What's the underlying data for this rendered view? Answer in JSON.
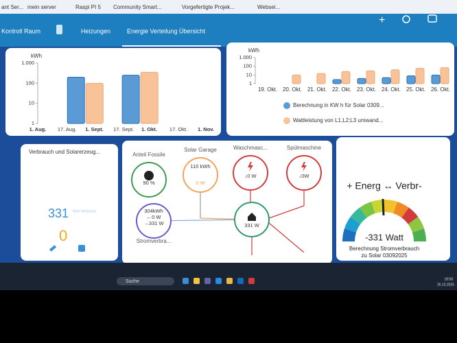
{
  "bookmarks": [
    "ant Ser...",
    "mein server",
    "Raspi PI 5",
    "Community Smart...",
    "Vorgefertigte Projek...",
    "Websei..."
  ],
  "nav": {
    "tabs": [
      "Kontroll Raum",
      "Heizungen",
      "Energie Verteilung Übersicht"
    ]
  },
  "monthly_chart": {
    "type": "bar",
    "y_label": "kWh",
    "log_scale": true,
    "ylim": [
      1,
      1000
    ],
    "yticks": [
      {
        "value": 1000,
        "label": "1.000"
      },
      100,
      10,
      1
    ],
    "xlim": [
      213,
      305
    ],
    "xticks": [
      {
        "value": 213,
        "label": "1. Aug."
      },
      {
        "value": 229,
        "label": "17. Aug."
      },
      {
        "value": 244,
        "label": "1. Sept."
      },
      {
        "value": 260,
        "label": "17. Sept."
      },
      {
        "value": 274,
        "label": "1. Okt."
      },
      {
        "value": 290,
        "label": "17. Okt."
      },
      {
        "value": 305,
        "label": "1. Nov."
      }
    ],
    "x": [
      239,
      269
    ],
    "series": [
      {
        "color": "#5b9bd5",
        "values": [
          200,
          250
        ]
      },
      {
        "color": "#f9c39a",
        "values": [
          100,
          350
        ]
      }
    ]
  },
  "daily_chart": {
    "type": "bar",
    "y_label": "kWh",
    "log_scale": true,
    "ylim": [
      1,
      1000
    ],
    "yticks": [
      {
        "value": 1000,
        "label": "1.000"
      },
      100,
      10,
      1
    ],
    "categories": [
      "19. Okt.",
      "20. Okt.",
      "21. Okt.",
      "22. Okt.",
      "23. Okt.",
      "24. Okt.",
      "25. Okt.",
      "26. Okt."
    ],
    "series": [
      {
        "name": "Berechnung in KW h für Solar 0309...",
        "color": "#5b9bd5",
        "values": [
          null,
          null,
          null,
          3,
          4,
          5,
          8,
          10
        ]
      },
      {
        "name": "Wattleistung von L1,L2;L3 umwand...",
        "color": "#f9c39a",
        "values": [
          null,
          10,
          15,
          25,
          30,
          40,
          60,
          70
        ]
      }
    ]
  },
  "consumption_card": {
    "title": "Verbrauch und Solarerzeug...",
    "consumption": "331",
    "consumption_label": "Watt Verbrauch",
    "solar": "0"
  },
  "flow": {
    "nodes": [
      {
        "label": "Anteil Fossile",
        "value": "90 %"
      },
      {
        "label": "Solar Garage",
        "value": "110 kWh",
        "value2": "0 W"
      },
      {
        "label": "Waschmasc...",
        "value": "↓0 W"
      },
      {
        "label": "Spülmaschine",
        "value": "↓0W"
      },
      {
        "label": "Stromverbra...",
        "value": "304kWh",
        "value2": "←0 W",
        "value3": "→331 W"
      },
      {
        "value": "331 W"
      }
    ]
  },
  "gauge": {
    "title": "+ Energ ↔ Verbr-",
    "value": "-331 Watt",
    "subtitle": "Berechnung Stromverbrauch",
    "subtitle2": "zu Solar 03092025"
  },
  "taskbar": {
    "search": "Suche",
    "time": "18:58",
    "date": "26.10.2025"
  }
}
